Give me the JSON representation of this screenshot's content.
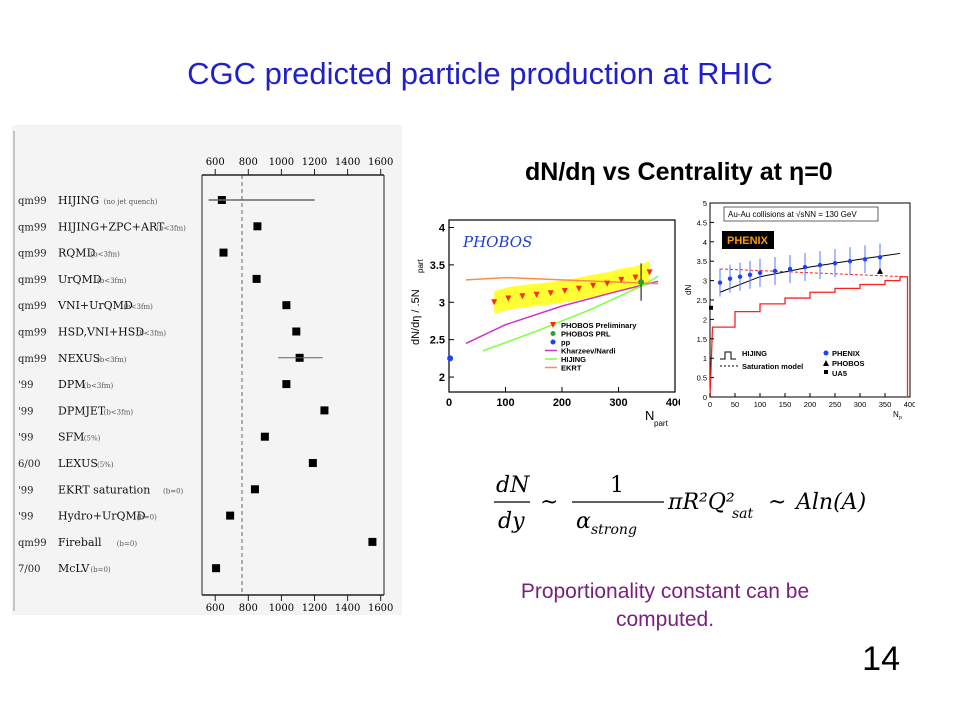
{
  "slide": {
    "title": "CGC predicted particle production at RHIC",
    "page_number": "14",
    "caption": "Proportionality constant can be computed."
  },
  "formula": {
    "lhs_num": "dN",
    "lhs_den": "dy",
    "rel": "~",
    "frac_num": "1",
    "frac_den": "α",
    "frac_den_sub": "strong",
    "mid": "πR²Q²",
    "mid_sub": "sat",
    "rel2": "~",
    "rhs": "Aln(A)"
  },
  "chart_data": [
    {
      "type": "scatter",
      "title": "",
      "x_ticks_top": [
        "600",
        "800",
        "1000",
        "1200",
        "1400",
        "1600"
      ],
      "x_ticks_bottom": [
        "600",
        "800",
        "1000",
        "1200",
        "1400",
        "1600"
      ],
      "xlim": [
        520,
        1620
      ],
      "grid": false,
      "rows": [
        {
          "tag": "qm99",
          "model": "HIJING",
          "note": "(no jet quench)",
          "value": 640
        },
        {
          "tag": "qm99",
          "model": "HIJING+ZPC+ART",
          "note": "(b<3fm)",
          "value": 855
        },
        {
          "tag": "qm99",
          "model": "RQMD",
          "note": "(b<3fm)",
          "value": 650
        },
        {
          "tag": "qm99",
          "model": "UrQMD",
          "note": "(b<3fm)",
          "value": 850
        },
        {
          "tag": "qm99",
          "model": "VNI+UrQMD",
          "note": "(b<3fm)",
          "value": 1030
        },
        {
          "tag": "qm99",
          "model": "HSD,VNI+HSD",
          "note": "(b<3fm)",
          "value": 1090
        },
        {
          "tag": "qm99",
          "model": "NEXUS",
          "note": "(b<3fm)",
          "value": 1110
        },
        {
          "tag": "'99",
          "model": "DPM",
          "note": "(b<3fm)",
          "value": 1030
        },
        {
          "tag": "'99",
          "model": "DPMJET",
          "note": "(b<3fm)",
          "value": 1260
        },
        {
          "tag": "'99",
          "model": "SFM",
          "note": "(5%)",
          "value": 900
        },
        {
          "tag": "6/00",
          "model": "LEXUS",
          "note": "(5%)",
          "value": 1190
        },
        {
          "tag": "'99",
          "model": "EKRT saturation",
          "note": "(b=0)",
          "value": 840
        },
        {
          "tag": "'99",
          "model": "Hydro+UrQMD",
          "note": "(b=0)",
          "value": 690
        },
        {
          "tag": "qm99",
          "model": "Fireball",
          "note": "(b=0)",
          "value": 1550
        },
        {
          "tag": "7/00",
          "model": "McLV",
          "note": "(b=0)",
          "value": 605
        }
      ]
    },
    {
      "type": "scatter",
      "title": "dN/dη vs Centrality at η=0",
      "experiment": "PHOBOS",
      "xlabel": "N",
      "xlabel_sub": "part",
      "ylabel": "dN/dη / .5N",
      "ylabel_sub": "part",
      "xlim": [
        0,
        400
      ],
      "ylim": [
        1.8,
        4.1
      ],
      "x_ticks": [
        "0",
        "100",
        "200",
        "300",
        "400"
      ],
      "y_ticks": [
        "2",
        "2.5",
        "3",
        "3.5",
        "4"
      ],
      "legend": [
        "PHOBOS Preliminary",
        "PHOBOS PRL",
        "pp",
        "Kharzeev/Nardi",
        "HIJING",
        "EKRT"
      ],
      "legend_position": "bottom-right",
      "series": [
        {
          "name": "PHOBOS Preliminary",
          "color": "#ff2a00",
          "x": [
            80,
            105,
            130,
            155,
            180,
            205,
            230,
            255,
            280,
            305,
            330,
            355
          ],
          "y": [
            3.0,
            3.05,
            3.08,
            3.1,
            3.12,
            3.15,
            3.18,
            3.22,
            3.25,
            3.3,
            3.33,
            3.4
          ]
        },
        {
          "name": "PHOBOS PRL",
          "color": "#2ca02c",
          "x": [
            340
          ],
          "y": [
            3.27
          ]
        },
        {
          "name": "pp",
          "color": "#1f3fff",
          "x": [
            2
          ],
          "y": [
            2.25
          ]
        },
        {
          "name": "Kharzeev/Nardi",
          "color": "#cc33cc",
          "x": [
            30,
            100,
            200,
            300,
            370
          ],
          "y": [
            2.45,
            2.7,
            2.95,
            3.15,
            3.28
          ]
        },
        {
          "name": "HIJING",
          "color": "#80ff40",
          "x": [
            60,
            150,
            250,
            350,
            370
          ],
          "y": [
            2.35,
            2.6,
            2.9,
            3.25,
            3.35
          ]
        },
        {
          "name": "EKRT",
          "color": "#ff8c40",
          "x": [
            30,
            100,
            200,
            300,
            370
          ],
          "y": [
            3.3,
            3.33,
            3.3,
            3.27,
            3.25
          ]
        }
      ]
    },
    {
      "type": "line",
      "experiment": "PHENIX",
      "annotation": "Au-Au collisions at √sNN = 130 GeV",
      "xlabel": "N",
      "xlabel_sub": "p",
      "ylabel": "dN",
      "xlim": [
        0,
        400
      ],
      "ylim": [
        0,
        5
      ],
      "x_ticks": [
        "0",
        "50",
        "100",
        "150",
        "200",
        "250",
        "300",
        "350",
        "400"
      ],
      "y_ticks": [
        "0",
        "0.5",
        "1",
        "1.5",
        "2",
        "2.5",
        "3",
        "3.5",
        "4",
        "4.5",
        "5"
      ],
      "legend": [
        "HIJING",
        "Saturation model",
        "PHENIX",
        "PHOBOS",
        "UA5"
      ],
      "series": [
        {
          "name": "PHENIX",
          "color": "#1f3fff",
          "x": [
            20,
            40,
            60,
            80,
            100,
            130,
            160,
            190,
            220,
            250,
            280,
            310,
            340
          ],
          "y": [
            2.95,
            3.05,
            3.1,
            3.15,
            3.2,
            3.25,
            3.3,
            3.35,
            3.4,
            3.45,
            3.5,
            3.55,
            3.6
          ]
        },
        {
          "name": "PHOBOS",
          "color": "#000000",
          "x": [
            340
          ],
          "y": [
            3.25
          ]
        },
        {
          "name": "UA5",
          "color": "#000000",
          "x": [
            2
          ],
          "y": [
            2.3
          ]
        },
        {
          "name": "Saturation model",
          "color": "#000000",
          "x": [
            20,
            100,
            200,
            300,
            380
          ],
          "y": [
            2.7,
            3.1,
            3.35,
            3.55,
            3.7
          ]
        },
        {
          "name": "HIJING",
          "color": "#ff2020",
          "x": [
            5,
            50,
            100,
            150,
            200,
            250,
            300,
            350,
            380
          ],
          "y": [
            1.8,
            2.2,
            2.4,
            2.55,
            2.7,
            2.8,
            2.9,
            3.0,
            3.1
          ]
        }
      ]
    }
  ]
}
